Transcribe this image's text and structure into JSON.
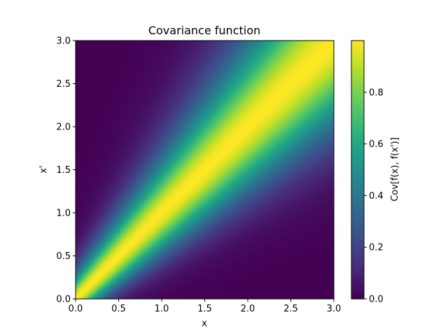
{
  "chart_data": {
    "type": "heatmap",
    "title": "Covariance function",
    "xlabel": "x",
    "ylabel": "x'",
    "xlim": [
      0.0,
      3.0
    ],
    "ylim": [
      0.0,
      3.0
    ],
    "xticks": [
      0.0,
      0.5,
      1.0,
      1.5,
      2.0,
      2.5,
      3.0
    ],
    "xtick_labels": [
      "0.0",
      "0.5",
      "1.0",
      "1.5",
      "2.0",
      "2.5",
      "3.0"
    ],
    "yticks": [
      0.0,
      0.5,
      1.0,
      1.5,
      2.0,
      2.5,
      3.0
    ],
    "ytick_labels": [
      "0.0",
      "0.5",
      "1.0",
      "1.5",
      "2.0",
      "2.5",
      "3.0"
    ],
    "colormap": "viridis",
    "colorbar": {
      "label": "Cov[f(x), f(x')]",
      "range": [
        0.0,
        1.0
      ],
      "ticks": [
        0.0,
        0.2,
        0.4,
        0.6,
        0.8
      ],
      "tick_labels": [
        "0.0",
        "0.2",
        "0.4",
        "0.6",
        "0.8"
      ]
    },
    "function": {
      "description": "Cov = exp(-(x - x')^2 / (2*l^2)), values peak at 1 on the diagonal x = x'",
      "length_scale": 0.7,
      "grid_on": false
    }
  }
}
